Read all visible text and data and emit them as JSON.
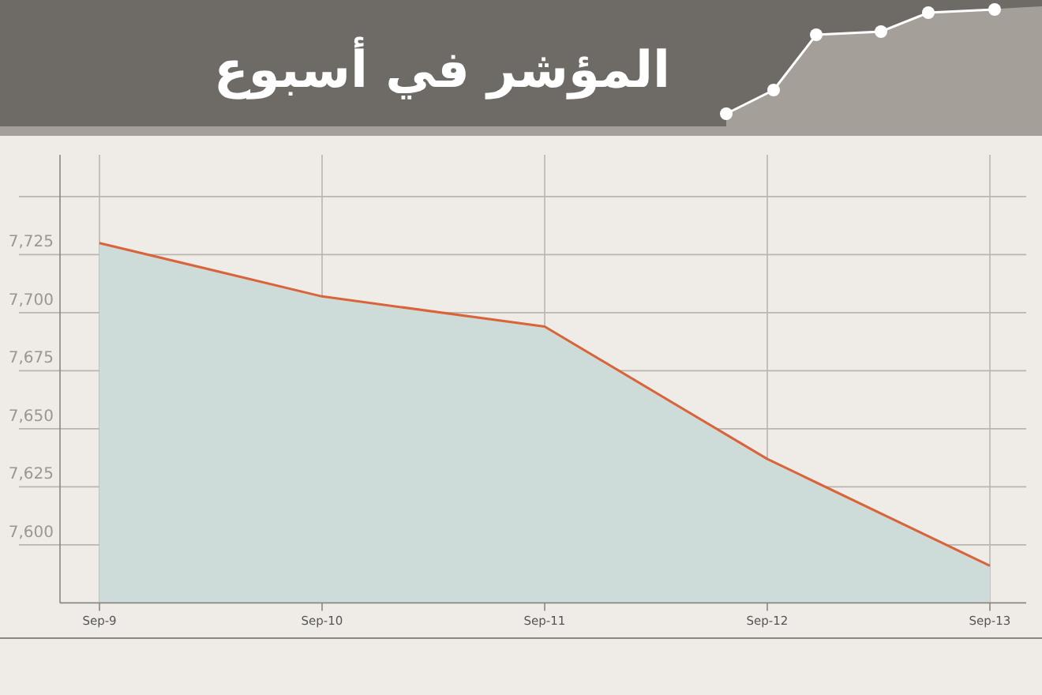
{
  "chart_data": {
    "type": "area",
    "title": "المؤشر في أسبوع",
    "categories": [
      "Sep-9",
      "Sep-10",
      "Sep-11",
      "Sep-12",
      "Sep-13"
    ],
    "series": [
      {
        "color": "#d9643a",
        "values": [
          7730,
          7707,
          7694,
          7637,
          7591
        ]
      }
    ],
    "ylim": [
      7575,
      7768
    ],
    "yticks": [
      {
        "value": 7600,
        "label": "7,600"
      },
      {
        "value": 7625,
        "label": "7,625"
      },
      {
        "value": 7650,
        "label": "7,650"
      },
      {
        "value": 7675,
        "label": "7,675"
      },
      {
        "value": 7700,
        "label": "7,700"
      },
      {
        "value": 7725,
        "label": "7,725"
      },
      {
        "value": 7750,
        "label": null
      }
    ],
    "grid": true
  }
}
